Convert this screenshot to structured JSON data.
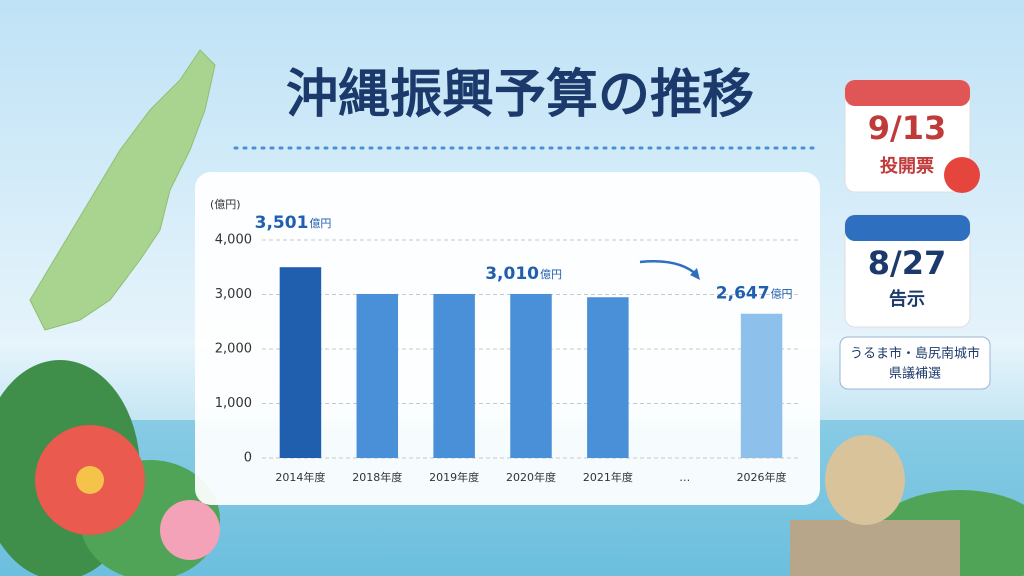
{
  "title": "沖縄振興予算の推移",
  "calendars": [
    {
      "date": "9/13",
      "label": "投開票"
    },
    {
      "date": "8/27",
      "label": "告示"
    }
  ],
  "note": [
    "うるま市・島尻南城市",
    "県議補選"
  ],
  "chart_data": {
    "type": "bar",
    "y_label": "(億円)",
    "categories": [
      "2014年度",
      "2018年度",
      "2019年度",
      "2020年度",
      "2021年度",
      "…",
      "2026年度"
    ],
    "values": [
      3501,
      3010,
      3010,
      3010,
      2950,
      null,
      2647
    ],
    "value_labels": [
      "3,501",
      null,
      null,
      "3,010",
      null,
      null,
      "2,647"
    ],
    "value_label_unit": "億円",
    "colors": [
      "#1f5fae",
      "#4a90d9",
      "#4a90d9",
      "#4a90d9",
      "#4a90d9",
      null,
      "#8ec0ec"
    ],
    "ylim": [
      0,
      4000
    ],
    "yticks": [
      0,
      {
        "value": 1000,
        "label": "1,000"
      },
      {
        "value": 2000,
        "label": "2,000"
      },
      {
        "value": 3000,
        "label": "3,000"
      },
      {
        "value": 4000,
        "label": "4,000"
      }
    ],
    "grid": true
  }
}
